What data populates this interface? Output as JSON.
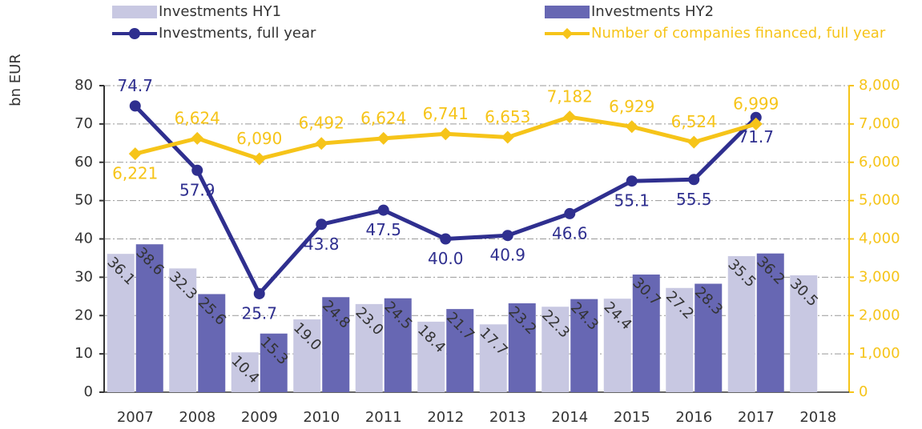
{
  "chart_data": {
    "type": "bar-line",
    "y_label": "bn EUR",
    "categories": [
      "2007",
      "2008",
      "2009",
      "2010",
      "2011",
      "2012",
      "2013",
      "2014",
      "2015",
      "2016",
      "2017",
      "2018"
    ],
    "series": [
      {
        "name": "Investments HY1",
        "type": "bar",
        "color": "#c8c8e2",
        "values": [
          36.1,
          32.3,
          10.4,
          19.0,
          23.0,
          18.4,
          17.7,
          22.3,
          24.4,
          27.2,
          35.5,
          30.5
        ],
        "value_labels": [
          "36.1",
          "32.3",
          "10.4",
          "19.0",
          "23.0",
          "18.4",
          "17.7",
          "22.3",
          "24.4",
          "27.2",
          "35.5",
          "30.5"
        ]
      },
      {
        "name": "Investments HY2",
        "type": "bar",
        "color": "#6767b3",
        "values": [
          38.6,
          25.6,
          15.3,
          24.8,
          24.5,
          21.7,
          23.2,
          24.3,
          30.7,
          28.3,
          36.2,
          null
        ],
        "value_labels": [
          "38.6",
          "25.6",
          "15.3",
          "24.8",
          "24.5",
          "21.7",
          "23.2",
          "24.3",
          "30.7",
          "28.3",
          "36.2",
          null
        ]
      },
      {
        "name": "Investments, full year",
        "type": "line",
        "color": "#2f2f8f",
        "values": [
          74.7,
          57.9,
          25.7,
          43.8,
          47.5,
          40.0,
          40.9,
          46.6,
          55.1,
          55.5,
          71.7,
          null
        ],
        "value_labels": [
          "74.7",
          "57.9",
          "25.7",
          "43.8",
          "47.5",
          "40.0",
          "40.9",
          "46.6",
          "55.1",
          "55.5",
          "71.7",
          null
        ]
      },
      {
        "name": "Number of companies financed, full year",
        "type": "line",
        "axis": "y2",
        "color": "#f6c419",
        "values": [
          6221,
          6624,
          6090,
          6492,
          6624,
          6741,
          6653,
          7182,
          6929,
          6524,
          6999,
          null
        ],
        "value_labels": [
          "6,221",
          "6,624",
          "6,090",
          "6,492",
          "6,624",
          "6,741",
          "6,653",
          "7,182",
          "6,929",
          "6,524",
          "6,999",
          null
        ]
      }
    ],
    "ylim": [
      0,
      80
    ],
    "yticks": [
      0,
      10,
      20,
      30,
      40,
      50,
      60,
      70,
      80
    ],
    "y2lim": [
      0,
      8000
    ],
    "y2ticks": [
      0,
      {
        "value": 1000,
        "label": "1,000"
      },
      {
        "value": 2000,
        "label": "2,000"
      },
      {
        "value": 3000,
        "label": "3,000"
      },
      {
        "value": 4000,
        "label": "4,000"
      },
      {
        "value": 5000,
        "label": "5,000"
      },
      {
        "value": 6000,
        "label": "6,000"
      },
      {
        "value": 7000,
        "label": "7,000"
      },
      {
        "value": 8000,
        "label": "8,000"
      }
    ],
    "grid": true
  }
}
